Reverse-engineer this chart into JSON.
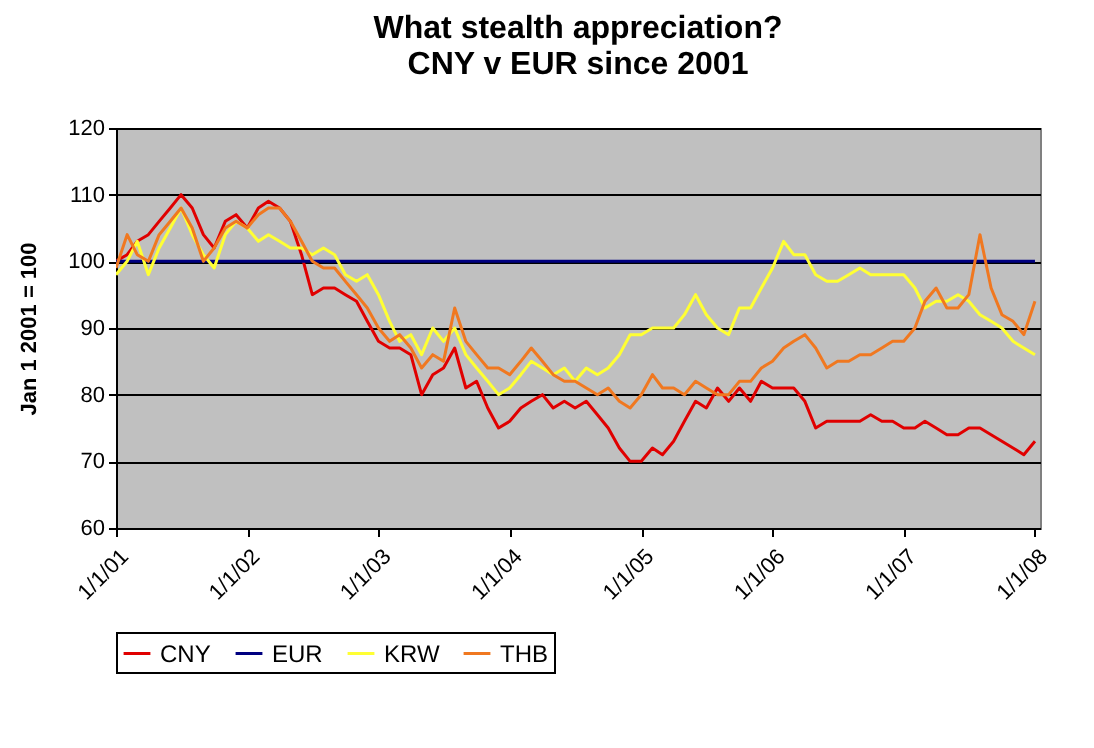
{
  "chart_data": {
    "type": "line",
    "title": "What stealth appreciation?",
    "subtitle": "CNY v EUR since 2001",
    "ylabel": "Jan 1 2001 = 100",
    "x": [
      "2001-01",
      "2001-02",
      "2001-03",
      "2001-04",
      "2001-05",
      "2001-06",
      "2001-07",
      "2001-08",
      "2001-09",
      "2001-10",
      "2001-11",
      "2001-12",
      "2002-01",
      "2002-02",
      "2002-03",
      "2002-04",
      "2002-05",
      "2002-06",
      "2002-07",
      "2002-08",
      "2002-09",
      "2002-10",
      "2002-11",
      "2002-12",
      "2003-01",
      "2003-02",
      "2003-03",
      "2003-04",
      "2003-05",
      "2003-06",
      "2003-07",
      "2003-08",
      "2003-09",
      "2003-10",
      "2003-11",
      "2003-12",
      "2004-01",
      "2004-02",
      "2004-03",
      "2004-04",
      "2004-05",
      "2004-06",
      "2004-07",
      "2004-08",
      "2004-09",
      "2004-10",
      "2004-11",
      "2004-12",
      "2005-01",
      "2005-02",
      "2005-03",
      "2005-04",
      "2005-05",
      "2005-06",
      "2005-07",
      "2005-08",
      "2005-09",
      "2005-10",
      "2005-11",
      "2005-12",
      "2006-01",
      "2006-02",
      "2006-03",
      "2006-04",
      "2006-05",
      "2006-06",
      "2006-07",
      "2006-08",
      "2006-09",
      "2006-10",
      "2006-11",
      "2006-12",
      "2007-01",
      "2007-02",
      "2007-03",
      "2007-04",
      "2007-05",
      "2007-06",
      "2007-07",
      "2007-08",
      "2007-09",
      "2007-10",
      "2007-11",
      "2007-12",
      "2008-01"
    ],
    "series": [
      {
        "name": "CNY",
        "color": "#e00000",
        "values": [
          100,
          101,
          103,
          104,
          106,
          108,
          110,
          108,
          104,
          102,
          106,
          107,
          105,
          108,
          109,
          108,
          106,
          101,
          95,
          96,
          96,
          95,
          94,
          91,
          88,
          87,
          87,
          86,
          80,
          83,
          84,
          87,
          81,
          82,
          78,
          75,
          76,
          78,
          79,
          80,
          78,
          79,
          78,
          79,
          77,
          75,
          72,
          70,
          70,
          72,
          71,
          73,
          76,
          79,
          78,
          81,
          79,
          81,
          79,
          82,
          81,
          81,
          81,
          79,
          75,
          76,
          76,
          76,
          76,
          77,
          76,
          76,
          75,
          75,
          76,
          75,
          74,
          74,
          75,
          75,
          74,
          73,
          72,
          71,
          73
        ]
      },
      {
        "name": "EUR",
        "color": "#000080",
        "x": [
          "2001-01",
          "2008-01"
        ],
        "values": [
          100,
          100
        ]
      },
      {
        "name": "KRW",
        "color": "#ffff33",
        "values": [
          98,
          100,
          103,
          98,
          102,
          105,
          108,
          104,
          101,
          99,
          104,
          106,
          105,
          103,
          104,
          103,
          102,
          102,
          101,
          102,
          101,
          98,
          97,
          98,
          95,
          91,
          88,
          89,
          86,
          90,
          88,
          90,
          86,
          84,
          82,
          80,
          81,
          83,
          85,
          84,
          83,
          84,
          82,
          84,
          83,
          84,
          86,
          89,
          89,
          90,
          90,
          90,
          92,
          95,
          92,
          90,
          89,
          93,
          93,
          96,
          99,
          103,
          101,
          101,
          98,
          97,
          97,
          98,
          99,
          98,
          98,
          98,
          98,
          96,
          93,
          94,
          94,
          95,
          94,
          92,
          91,
          90,
          88,
          87,
          86
        ]
      },
      {
        "name": "THB",
        "color": "#f07820",
        "values": [
          99,
          104,
          101,
          100,
          104,
          106,
          108,
          105,
          100,
          102,
          105,
          106,
          105,
          107,
          108,
          108,
          106,
          103,
          100,
          99,
          99,
          97,
          95,
          93,
          90,
          88,
          89,
          87,
          84,
          86,
          85,
          93,
          88,
          86,
          84,
          84,
          83,
          85,
          87,
          85,
          83,
          82,
          82,
          81,
          80,
          81,
          79,
          78,
          80,
          83,
          81,
          81,
          80,
          82,
          81,
          80,
          80,
          82,
          82,
          84,
          85,
          87,
          88,
          89,
          87,
          84,
          85,
          85,
          86,
          86,
          87,
          88,
          88,
          90,
          94,
          96,
          93,
          93,
          95,
          104,
          96,
          92,
          91,
          89,
          94
        ]
      }
    ],
    "xlim": [
      "2001-01-01",
      "2008-01-15"
    ],
    "xticks": [
      {
        "value": "2001-01-01",
        "label": "1/1/01"
      },
      {
        "value": "2002-01-01",
        "label": "1/1/02"
      },
      {
        "value": "2003-01-01",
        "label": "1/1/03"
      },
      {
        "value": "2004-01-01",
        "label": "1/1/04"
      },
      {
        "value": "2005-01-01",
        "label": "1/1/05"
      },
      {
        "value": "2006-01-01",
        "label": "1/1/06"
      },
      {
        "value": "2007-01-01",
        "label": "1/1/07"
      },
      {
        "value": "2008-01-01",
        "label": "1/1/08"
      }
    ],
    "ylim": [
      60,
      120
    ],
    "yticks": [
      60,
      70,
      80,
      90,
      100,
      110,
      120
    ],
    "grid": "y",
    "legend": "bottom",
    "marker": "none",
    "line_style": "solid"
  }
}
